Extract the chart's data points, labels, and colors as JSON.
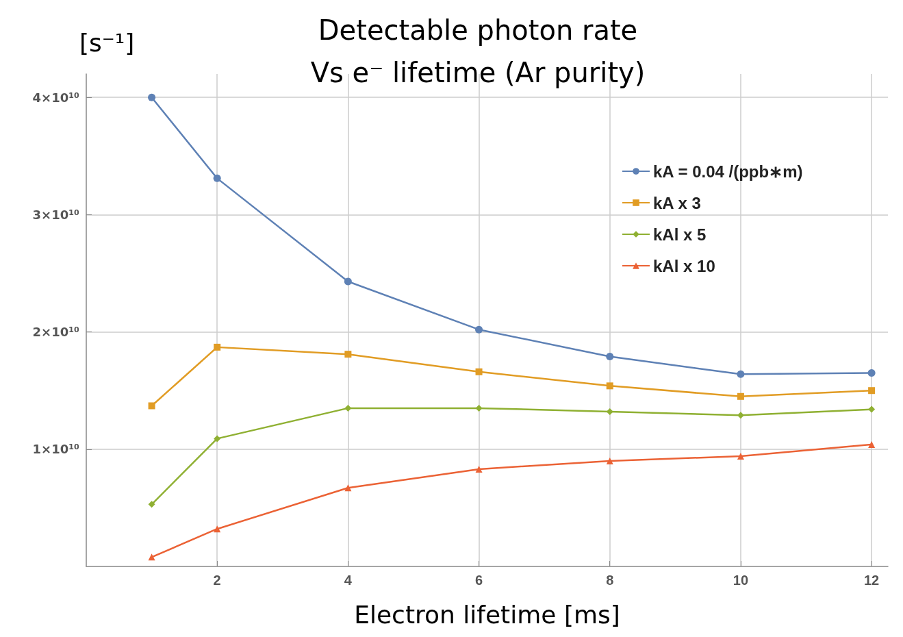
{
  "chart_data": {
    "type": "line",
    "title": "Detectable photon rate\nVs e⁻ lifetime (Ar purity)",
    "xlabel": "Electron lifetime [ms]",
    "ylabel": "[s⁻¹]",
    "x": [
      1,
      2,
      4,
      6,
      8,
      10,
      12
    ],
    "series": [
      {
        "name": "kA = 0.04 /(ppb∗m)",
        "color": "#5e81b5",
        "marker": "circle",
        "values": [
          40000000000.0,
          33100000000.0,
          24300000000.0,
          20200000000.0,
          17900000000.0,
          16400000000.0,
          16500000000.0
        ]
      },
      {
        "name": "kA x 3",
        "color": "#e19c24",
        "marker": "square",
        "values": [
          13700000000.0,
          18700000000.0,
          18100000000.0,
          16600000000.0,
          15400000000.0,
          14500000000.0,
          15000000000.0
        ]
      },
      {
        "name": "kAl x 5",
        "color": "#8fb032",
        "marker": "diamond",
        "values": [
          5300000000.0,
          10900000000.0,
          13500000000.0,
          13500000000.0,
          13200000000.0,
          12900000000.0,
          13400000000.0
        ]
      },
      {
        "name": "kAl x 10",
        "color": "#eb6235",
        "marker": "triangle",
        "values": [
          800000000.0,
          3200000000.0,
          6700000000.0,
          8300000000.0,
          9000000000.0,
          9400000000.0,
          10400000000.0
        ]
      }
    ],
    "xlim": [
      0,
      12.25
    ],
    "xticks": [
      2,
      4,
      6,
      8,
      10,
      12
    ],
    "ylim": [
      0,
      42000000000.0
    ],
    "yticks": [
      {
        "value": 10000000000.0,
        "label": "1×10¹⁰"
      },
      {
        "value": 20000000000.0,
        "label": "2×10¹⁰"
      },
      {
        "value": 30000000000.0,
        "label": "3×10¹⁰"
      },
      {
        "value": 40000000000.0,
        "label": "4×10¹⁰"
      }
    ],
    "grid": true,
    "legend": "top right",
    "line_style": "solid"
  }
}
